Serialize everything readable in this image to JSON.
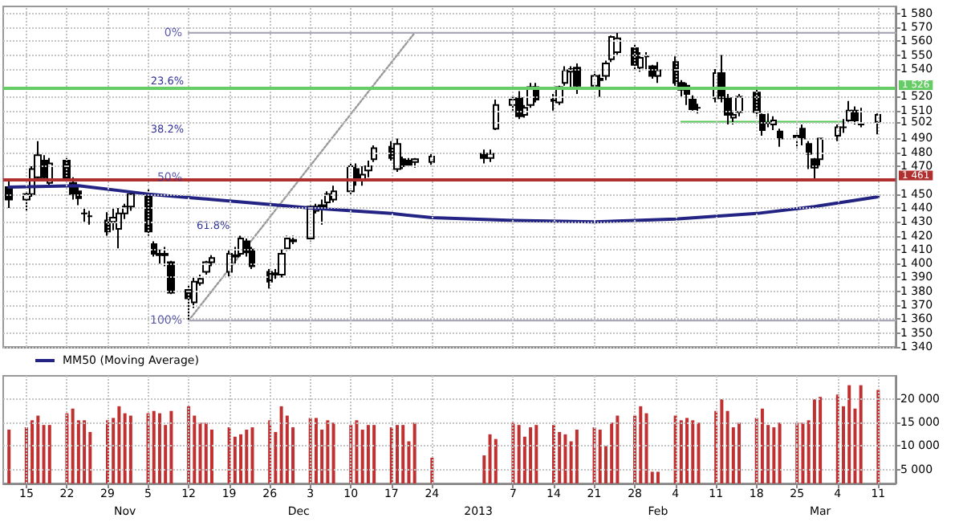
{
  "chart_data": [
    {
      "type": "candlestick",
      "xlim": [
        "2012-10-11",
        "2013-03-14"
      ],
      "xticks": [
        {
          "value": "2012-10-15",
          "label": null
        },
        {
          "value": "2012-10-22",
          "label": null
        },
        {
          "value": "2012-10-29",
          "label": null
        },
        {
          "value": "2012-11-05",
          "label": null
        },
        {
          "value": "2012-11-12",
          "label": null
        },
        {
          "value": "2012-11-19",
          "label": null
        },
        {
          "value": "2012-11-26",
          "label": null
        },
        {
          "value": "2012-12-03",
          "label": null
        },
        {
          "value": "2012-12-10",
          "label": null
        },
        {
          "value": "2012-12-17",
          "label": null
        },
        {
          "value": "2012-12-24",
          "label": null
        },
        {
          "value": "2013-01-07",
          "label": null
        },
        {
          "value": "2013-01-14",
          "label": null
        },
        {
          "value": "2013-01-21",
          "label": null
        },
        {
          "value": "2013-01-28",
          "label": null
        },
        {
          "value": "2013-02-04",
          "label": null
        },
        {
          "value": "2013-02-11",
          "label": null
        },
        {
          "value": "2013-02-18",
          "label": null
        },
        {
          "value": "2013-02-25",
          "label": null
        },
        {
          "value": "2013-03-04",
          "label": null
        },
        {
          "value": "2013-03-11",
          "label": null
        }
      ],
      "ylim": [
        1340,
        1585
      ],
      "yticks": [
        {
          "value": 1340,
          "label": "1 340"
        },
        {
          "value": 1350,
          "label": "1 350"
        },
        {
          "value": 1360,
          "label": "1 360"
        },
        {
          "value": 1370,
          "label": "1 370"
        },
        {
          "value": 1380,
          "label": "1 380"
        },
        {
          "value": 1390,
          "label": "1 390"
        },
        {
          "value": 1400,
          "label": "1 400"
        },
        {
          "value": 1410,
          "label": "1 410"
        },
        {
          "value": 1420,
          "label": "1 420"
        },
        {
          "value": 1430,
          "label": "1 430"
        },
        {
          "value": 1440,
          "label": "1 440"
        },
        {
          "value": 1450,
          "label": "1 450"
        },
        {
          "value": 1470,
          "label": "1 470"
        },
        {
          "value": 1480,
          "label": "1 480"
        },
        {
          "value": 1490,
          "label": "1 490"
        },
        {
          "value": 1502,
          "label": "1 502"
        },
        {
          "value": 1510,
          "label": "1 510"
        },
        {
          "value": 1520,
          "label": "1 520"
        },
        {
          "value": 1540,
          "label": "1 540"
        },
        {
          "value": 1550,
          "label": "1 550"
        },
        {
          "value": 1560,
          "label": "1 560"
        },
        {
          "value": 1570,
          "label": "1 570"
        },
        {
          "value": 1580,
          "label": "1 580"
        }
      ],
      "grid": true,
      "legend": "bottom left",
      "tick_labels": "y",
      "series": [
        {
          "type": "candlestick",
          "color": "#000000",
          "x": [
            "2012-10-12",
            "2012-10-15",
            "2012-10-16",
            "2012-10-17",
            "2012-10-18",
            "2012-10-19",
            "2012-10-22",
            "2012-10-23",
            "2012-10-24",
            "2012-10-25",
            "2012-10-26",
            "2012-10-29",
            "2012-10-30",
            "2012-10-31",
            "2012-11-01",
            "2012-11-02",
            "2012-11-05",
            "2012-11-06",
            "2012-11-07",
            "2012-11-08",
            "2012-11-09",
            "2012-11-12",
            "2012-11-13",
            "2012-11-14",
            "2012-11-15",
            "2012-11-16",
            "2012-11-19",
            "2012-11-20",
            "2012-11-21",
            "2012-11-22",
            "2012-11-23",
            "2012-11-26",
            "2012-11-27",
            "2012-11-28",
            "2012-11-29",
            "2012-11-30",
            "2012-12-03",
            "2012-12-04",
            "2012-12-05",
            "2012-12-06",
            "2012-12-07",
            "2012-12-10",
            "2012-12-11",
            "2012-12-12",
            "2012-12-13",
            "2012-12-14",
            "2012-12-17",
            "2012-12-18",
            "2012-12-19",
            "2012-12-20",
            "2012-12-21",
            "2012-12-24",
            "2013-01-02",
            "2013-01-03",
            "2013-01-04",
            "2013-01-07",
            "2013-01-08",
            "2013-01-09",
            "2013-01-10",
            "2013-01-11",
            "2013-01-14",
            "2013-01-15",
            "2013-01-16",
            "2013-01-17",
            "2013-01-18",
            "2013-01-21",
            "2013-01-22",
            "2013-01-23",
            "2013-01-24",
            "2013-01-25",
            "2013-01-28",
            "2013-01-29",
            "2013-01-30",
            "2013-01-31",
            "2013-02-01",
            "2013-02-04",
            "2013-02-05",
            "2013-02-06",
            "2013-02-07",
            "2013-02-08",
            "2013-02-11",
            "2013-02-12",
            "2013-02-13",
            "2013-02-14",
            "2013-02-15",
            "2013-02-18",
            "2013-02-19",
            "2013-02-20",
            "2013-02-21",
            "2013-02-22",
            "2013-02-25",
            "2013-02-26",
            "2013-02-27",
            "2013-02-28",
            "2013-03-01",
            "2013-03-04",
            "2013-03-05",
            "2013-03-06",
            "2013-03-07",
            "2013-03-08",
            "2013-03-11"
          ],
          "ohlc": [
            [
              1455,
              1460,
              1440,
              1446
            ],
            [
              1446,
              1452,
              1438,
              1450
            ],
            [
              1450,
              1470,
              1448,
              1468
            ],
            [
              1462,
              1488,
              1460,
              1478
            ],
            [
              1474,
              1478,
              1460,
              1462
            ],
            [
              1458,
              1476,
              1456,
              1472
            ],
            [
              1474,
              1476,
              1458,
              1460
            ],
            [
              1458,
              1462,
              1446,
              1450
            ],
            [
              1452,
              1455,
              1442,
              1447
            ],
            [
              1436,
              1440,
              1430,
              1436
            ],
            [
              1434,
              1438,
              1428,
              1434
            ],
            [
              1431,
              1437,
              1420,
              1423
            ],
            [
              1430,
              1440,
              1424,
              1433
            ],
            [
              1425,
              1440,
              1411,
              1436
            ],
            [
              1436,
              1443,
              1432,
              1441
            ],
            [
              1441,
              1452,
              1438,
              1450
            ],
            [
              1450,
              1454,
              1420,
              1423
            ],
            [
              1414,
              1416,
              1405,
              1407
            ],
            [
              1407,
              1410,
              1400,
              1406
            ],
            [
              1406,
              1412,
              1398,
              1407
            ],
            [
              1401,
              1402,
              1378,
              1379
            ],
            [
              1381,
              1384,
              1359,
              1375
            ],
            [
              1372,
              1390,
              1368,
              1387
            ],
            [
              1386,
              1392,
              1384,
              1389
            ],
            [
              1394,
              1402,
              1392,
              1401
            ],
            [
              1401,
              1406,
              1398,
              1404
            ],
            [
              1394,
              1410,
              1390,
              1407
            ],
            [
              1405,
              1412,
              1400,
              1406
            ],
            [
              1407,
              1420,
              1405,
              1418
            ],
            [
              1416,
              1418,
              1405,
              1408
            ],
            [
              1410,
              1412,
              1396,
              1398
            ],
            [
              1394,
              1396,
              1382,
              1387
            ],
            [
              1392,
              1396,
              1389,
              1393
            ],
            [
              1392,
              1410,
              1390,
              1407
            ],
            [
              1411,
              1420,
              1409,
              1418
            ],
            [
              1417,
              1420,
              1414,
              1416
            ],
            [
              1418,
              1442,
              1416,
              1441
            ],
            [
              1438,
              1443,
              1436,
              1441
            ],
            [
              1442,
              1446,
              1428,
              1440
            ],
            [
              1444,
              1452,
              1440,
              1450
            ],
            [
              1446,
              1456,
              1444,
              1452
            ],
            [
              1452,
              1472,
              1450,
              1470
            ],
            [
              1468,
              1472,
              1456,
              1460
            ],
            [
              1460,
              1470,
              1456,
              1464
            ],
            [
              1467,
              1474,
              1462,
              1470
            ],
            [
              1475,
              1485,
              1473,
              1483
            ],
            [
              1484,
              1488,
              1474,
              1476
            ],
            [
              1468,
              1490,
              1466,
              1486
            ],
            [
              1475,
              1477,
              1468,
              1470
            ],
            [
              1474,
              1476,
              1470,
              1471
            ],
            [
              1473,
              1476,
              1469,
              1475
            ],
            [
              1473,
              1479,
              1471,
              1477
            ],
            [
              1479,
              1482,
              1472,
              1476
            ],
            [
              1476,
              1482,
              1473,
              1479
            ],
            [
              1497,
              1518,
              1496,
              1514
            ],
            [
              1514,
              1520,
              1510,
              1518
            ],
            [
              1519,
              1524,
              1504,
              1506
            ],
            [
              1507,
              1514,
              1505,
              1512
            ],
            [
              1514,
              1530,
              1512,
              1527
            ],
            [
              1527,
              1530,
              1516,
              1518
            ],
            [
              1517,
              1522,
              1510,
              1518
            ],
            [
              1516,
              1528,
              1514,
              1527
            ],
            [
              1530,
              1542,
              1528,
              1539
            ],
            [
              1538,
              1542,
              1525,
              1540
            ],
            [
              1541,
              1544,
              1522,
              1528
            ],
            [
              1528,
              1538,
              1526,
              1535
            ],
            [
              1533,
              1536,
              1520,
              1532
            ],
            [
              1535,
              1546,
              1532,
              1544
            ],
            [
              1547,
              1564,
              1545,
              1563
            ],
            [
              1552,
              1566,
              1550,
              1562
            ],
            [
              1555,
              1558,
              1540,
              1543
            ],
            [
              1541,
              1552,
              1538,
              1548
            ],
            [
              1549,
              1552,
              1540,
              1549
            ],
            [
              1542,
              1543,
              1533,
              1535
            ],
            [
              1535,
              1545,
              1530,
              1539
            ],
            [
              1545,
              1549,
              1528,
              1530
            ],
            [
              1530,
              1532,
              1520,
              1525
            ],
            [
              1528,
              1530,
              1514,
              1522
            ],
            [
              1518,
              1521,
              1510,
              1511
            ],
            [
              1512,
              1515,
              1508,
              1512
            ],
            [
              1519,
              1540,
              1516,
              1537
            ],
            [
              1537,
              1550,
              1516,
              1519
            ],
            [
              1519,
              1522,
              1500,
              1507
            ],
            [
              1505,
              1510,
              1500,
              1507
            ],
            [
              1509,
              1522,
              1506,
              1520
            ],
            [
              1523,
              1525,
              1506,
              1509
            ],
            [
              1507,
              1508,
              1492,
              1496
            ],
            [
              1501,
              1508,
              1498,
              1501
            ],
            [
              1500,
              1506,
              1496,
              1503
            ],
            [
              1495,
              1497,
              1484,
              1490
            ],
            [
              1492,
              1494,
              1483,
              1491
            ],
            [
              1497,
              1500,
              1485,
              1490
            ],
            [
              1486,
              1488,
              1468,
              1479
            ],
            [
              1475,
              1476,
              1461,
              1469
            ],
            [
              1475,
              1490,
              1470,
              1490
            ],
            [
              1492,
              1500,
              1488,
              1498
            ],
            [
              1498,
              1504,
              1494,
              1498
            ],
            [
              1503,
              1517,
              1502,
              1510
            ],
            [
              1510,
              1513,
              1500,
              1503
            ],
            [
              1500,
              1512,
              1498,
              1500
            ],
            [
              1502,
              1508,
              1493,
              1507
            ]
          ]
        },
        {
          "type": "line",
          "name": "MM50 (Moving Average)",
          "color": "#232383",
          "x": [
            "2012-10-12",
            "2012-10-24",
            "2012-11-05",
            "2012-11-19",
            "2012-12-03",
            "2012-12-17",
            "2012-12-24",
            "2013-01-07",
            "2013-01-21",
            "2013-02-04",
            "2013-02-18",
            "2013-02-28",
            "2013-03-11"
          ],
          "values": [
            1455,
            1456,
            1450,
            1445,
            1440,
            1436,
            1433,
            1431,
            1430,
            1432,
            1436,
            1441,
            1448
          ]
        },
        {
          "type": "line",
          "color": "#999999",
          "line_style": "dotted",
          "x": [
            "2012-11-12",
            "2012-12-21"
          ],
          "values": [
            1359,
            1566
          ]
        },
        {
          "type": "line",
          "color": "#a8a8b8",
          "x": [
            "2012-11-12",
            "2013-03-14"
          ],
          "values": [
            1566,
            1566
          ]
        },
        {
          "type": "line",
          "color": "#a8a8b8",
          "x": [
            "2012-11-12",
            "2013-03-14"
          ],
          "values": [
            1359,
            1359
          ]
        },
        {
          "type": "line",
          "color": "#55cc55",
          "x": [
            "2013-02-05",
            "2013-03-05"
          ],
          "values": [
            1502,
            1502
          ]
        }
      ],
      "ref_lines": [
        {
          "axis": "y",
          "value": 1526,
          "label": "1 526",
          "color": "#66cc66"
        },
        {
          "axis": "y",
          "value": 1461,
          "label": "1 461",
          "color": "#b03030"
        }
      ],
      "annotations": [
        {
          "text": "0%",
          "x": "2012-11-12",
          "y": 1566
        },
        "23.6%",
        "38.2%",
        {
          "text": "50%",
          "x": "2012-11-12",
          "y": 1462
        },
        "61.8%",
        {
          "text": "100%",
          "x": "2012-11-12",
          "y": 1359
        }
      ]
    },
    {
      "type": "bar",
      "color": "#c03030",
      "xlim": [
        "2012-10-11",
        "2013-03-14"
      ],
      "xticks": [
        {
          "value": "2012-10-15",
          "label": "15"
        },
        {
          "value": "2012-10-22",
          "label": "22"
        },
        {
          "value": "2012-10-29",
          "label": "29"
        },
        {
          "value": "2012-11-05",
          "label": "5"
        },
        {
          "value": "2012-11-12",
          "label": "12"
        },
        {
          "value": "2012-11-19",
          "label": "19"
        },
        {
          "value": "2012-11-26",
          "label": "26"
        },
        {
          "value": "2012-12-03",
          "label": "3"
        },
        {
          "value": "2012-12-10",
          "label": "10"
        },
        {
          "value": "2012-12-17",
          "label": "17"
        },
        {
          "value": "2012-12-24",
          "label": "24"
        },
        {
          "value": "2013-01-07",
          "label": "7"
        },
        {
          "value": "2013-01-14",
          "label": "14"
        },
        {
          "value": "2013-01-21",
          "label": "21"
        },
        {
          "value": "2013-01-28",
          "label": "28"
        },
        {
          "value": "2013-02-04",
          "label": "4"
        },
        {
          "value": "2013-02-11",
          "label": "11"
        },
        {
          "value": "2013-02-18",
          "label": "18"
        },
        {
          "value": "2013-02-25",
          "label": "25"
        },
        {
          "value": "2013-03-04",
          "label": "4"
        },
        {
          "value": "2013-03-11",
          "label": "11"
        }
      ],
      "x2lim": [
        "2012-10-11",
        "2013-03-14"
      ],
      "x2ticks": [
        {
          "value": "2012-11-01",
          "label": "Nov"
        },
        {
          "value": "2012-12-01",
          "label": "Dec"
        },
        {
          "value": "2013-01-01",
          "label": "2013"
        },
        {
          "value": "2013-02-01",
          "label": "Feb"
        },
        {
          "value": "2013-03-01",
          "label": "Mar"
        }
      ],
      "ylim": [
        2000,
        25000
      ],
      "yticks": [
        {
          "value": 5000,
          "label": "5 000"
        },
        {
          "value": 10000,
          "label": "10 000"
        },
        {
          "value": 15000,
          "label": "15 000"
        },
        {
          "value": 20000,
          "label": "20 000"
        }
      ],
      "grid": true,
      "x": [
        "2012-10-12",
        "2012-10-15",
        "2012-10-16",
        "2012-10-17",
        "2012-10-18",
        "2012-10-19",
        "2012-10-22",
        "2012-10-23",
        "2012-10-24",
        "2012-10-25",
        "2012-10-26",
        "2012-10-29",
        "2012-10-30",
        "2012-10-31",
        "2012-11-01",
        "2012-11-02",
        "2012-11-05",
        "2012-11-06",
        "2012-11-07",
        "2012-11-08",
        "2012-11-09",
        "2012-11-12",
        "2012-11-13",
        "2012-11-14",
        "2012-11-15",
        "2012-11-16",
        "2012-11-19",
        "2012-11-20",
        "2012-11-21",
        "2012-11-22",
        "2012-11-23",
        "2012-11-26",
        "2012-11-27",
        "2012-11-28",
        "2012-11-29",
        "2012-11-30",
        "2012-12-03",
        "2012-12-04",
        "2012-12-05",
        "2012-12-06",
        "2012-12-07",
        "2012-12-10",
        "2012-12-11",
        "2012-12-12",
        "2012-12-13",
        "2012-12-14",
        "2012-12-17",
        "2012-12-18",
        "2012-12-19",
        "2012-12-20",
        "2012-12-21",
        "2012-12-24",
        "2013-01-02",
        "2013-01-03",
        "2013-01-04",
        "2013-01-07",
        "2013-01-08",
        "2013-01-09",
        "2013-01-10",
        "2013-01-11",
        "2013-01-14",
        "2013-01-15",
        "2013-01-16",
        "2013-01-17",
        "2013-01-18",
        "2013-01-21",
        "2013-01-22",
        "2013-01-23",
        "2013-01-24",
        "2013-01-25",
        "2013-01-28",
        "2013-01-29",
        "2013-01-30",
        "2013-01-31",
        "2013-02-01",
        "2013-02-04",
        "2013-02-05",
        "2013-02-06",
        "2013-02-07",
        "2013-02-08",
        "2013-02-11",
        "2013-02-12",
        "2013-02-13",
        "2013-02-14",
        "2013-02-15",
        "2013-02-18",
        "2013-02-19",
        "2013-02-20",
        "2013-02-21",
        "2013-02-22",
        "2013-02-25",
        "2013-02-26",
        "2013-02-27",
        "2013-02-28",
        "2013-03-01",
        "2013-03-04",
        "2013-03-05",
        "2013-03-06",
        "2013-03-07",
        "2013-03-08",
        "2013-03-11"
      ],
      "values": [
        13500,
        14000,
        15500,
        16500,
        14500,
        14500,
        17000,
        18000,
        15500,
        15500,
        13000,
        15500,
        16000,
        18500,
        17000,
        16500,
        17000,
        17500,
        17000,
        14500,
        17500,
        18500,
        16500,
        15000,
        15000,
        13500,
        14000,
        12000,
        12500,
        13500,
        14000,
        15500,
        13000,
        18500,
        16500,
        14000,
        16000,
        16000,
        13500,
        15500,
        15000,
        14500,
        15500,
        13500,
        14500,
        14500,
        14000,
        14500,
        14500,
        11000,
        15000,
        7500,
        8000,
        12500,
        11500,
        15000,
        14500,
        12000,
        14000,
        14500,
        14500,
        13000,
        12500,
        11000,
        13500,
        14000,
        13500,
        10000,
        15000,
        16500,
        16500,
        18500,
        17000,
        4500,
        4500,
        16500,
        15500,
        16000,
        15500,
        15000,
        17500,
        20000,
        17500,
        14000,
        15000,
        16000,
        18000,
        14500,
        14000,
        15000,
        15000,
        15000,
        15500,
        20000,
        20500,
        21000,
        18500,
        23000,
        18000,
        23000,
        22000
      ]
    }
  ]
}
